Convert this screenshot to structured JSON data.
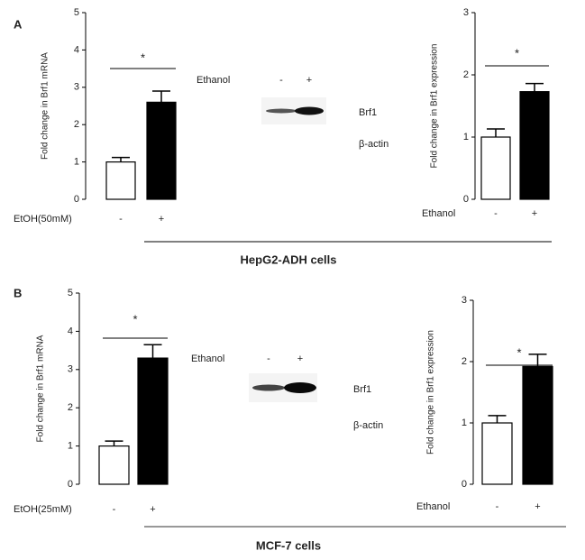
{
  "panels": [
    {
      "label": "A",
      "blot_label": "Ethanol",
      "blot_lanes": [
        "-",
        "+"
      ],
      "bands": [
        "Brf1",
        "β-actin"
      ],
      "caption": "HepG2-ADH cells"
    },
    {
      "label": "B",
      "blot_label": "Ethanol",
      "blot_lanes": [
        "-",
        "+"
      ],
      "bands": [
        "Brf1",
        "β-actin"
      ],
      "caption": "MCF-7 cells"
    }
  ],
  "chart_data": [
    {
      "type": "bar",
      "ylabel": "Fold change in Brf1 mRNA",
      "xlabel": "EtOH(50mM)",
      "categories": [
        "-",
        "+"
      ],
      "values": [
        1.0,
        2.6
      ],
      "errors": [
        0.12,
        0.3
      ],
      "colors": [
        "#ffffff",
        "#000000"
      ],
      "annotation": "*",
      "ylim": [
        0,
        5
      ],
      "yticks": [
        0,
        1,
        2,
        3,
        4,
        5
      ]
    },
    {
      "type": "bar",
      "ylabel": "Fold change in Brf1 expression",
      "xlabel": "Ethanol",
      "categories": [
        "-",
        "+"
      ],
      "values": [
        1.0,
        1.73
      ],
      "errors": [
        0.13,
        0.13
      ],
      "colors": [
        "#ffffff",
        "#000000"
      ],
      "annotation": "*",
      "ylim": [
        0,
        3
      ],
      "yticks": [
        0,
        1,
        2,
        3
      ]
    },
    {
      "type": "bar",
      "ylabel": "Fold change in Brf1 mRNA",
      "xlabel": "EtOH(25mM)",
      "categories": [
        "-",
        "+"
      ],
      "values": [
        1.0,
        3.3
      ],
      "errors": [
        0.13,
        0.35
      ],
      "colors": [
        "#ffffff",
        "#000000"
      ],
      "annotation": "*",
      "ylim": [
        0,
        5
      ],
      "yticks": [
        0,
        1,
        2,
        3,
        4,
        5
      ]
    },
    {
      "type": "bar",
      "ylabel": "Fold change in Brf1 expression",
      "xlabel": "Ethanol",
      "categories": [
        "-",
        "+"
      ],
      "values": [
        1.0,
        1.92
      ],
      "errors": [
        0.12,
        0.2
      ],
      "colors": [
        "#ffffff",
        "#000000"
      ],
      "annotation": "*",
      "ylim": [
        0,
        3
      ],
      "yticks": [
        0,
        1,
        2,
        3
      ]
    }
  ]
}
